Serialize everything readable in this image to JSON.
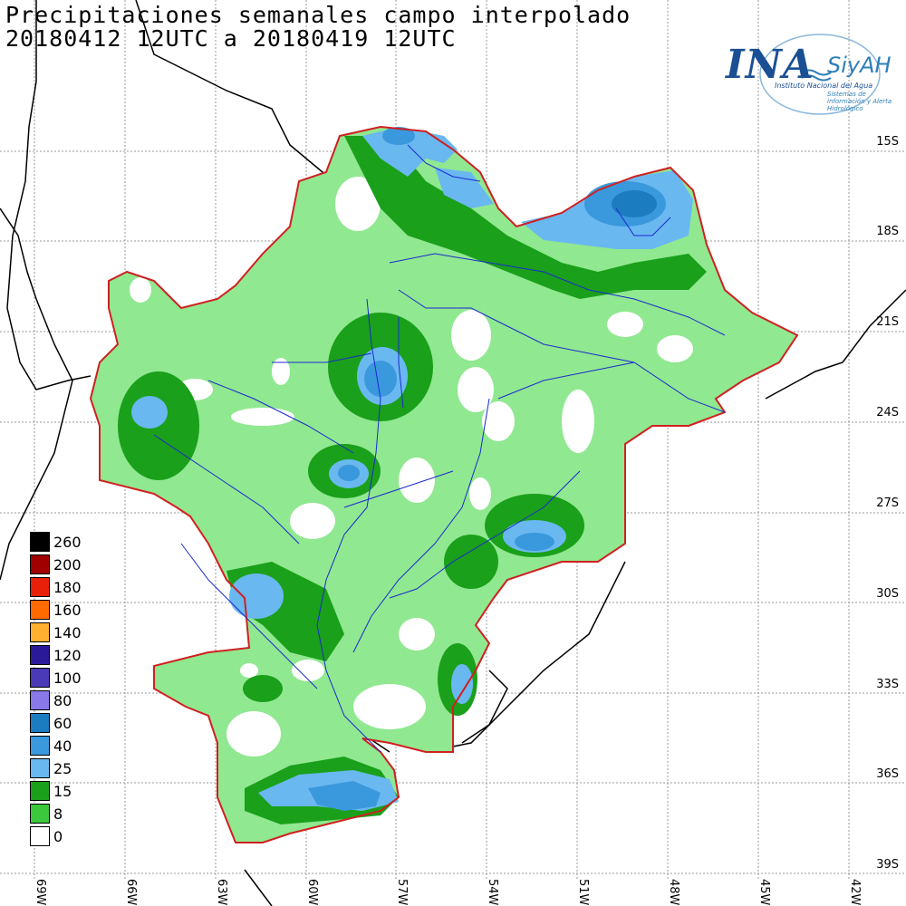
{
  "title": {
    "line1": "Precipitaciones semanales campo interpolado",
    "line2": "20180412 12UTC a 20180419 12UTC"
  },
  "logo": {
    "ina": "INA",
    "siyah": "SiyAH",
    "subtitle": "Instituto Nacional del Agua",
    "tagline": "Sistemas de información y Alerta Hidrológico"
  },
  "lat_labels": [
    "15S",
    "18S",
    "21S",
    "24S",
    "27S",
    "30S",
    "33S",
    "36S",
    "39S"
  ],
  "lon_labels": [
    "69W",
    "66W",
    "63W",
    "60W",
    "57W",
    "54W",
    "51W",
    "48W",
    "45W",
    "42W"
  ],
  "legend": [
    {
      "label": "260",
      "color": "#000000"
    },
    {
      "label": "200",
      "color": "#a00000"
    },
    {
      "label": "180",
      "color": "#e8200a"
    },
    {
      "label": "160",
      "color": "#ff6a00"
    },
    {
      "label": "140",
      "color": "#ffb030"
    },
    {
      "label": "120",
      "color": "#2a1a9a"
    },
    {
      "label": "100",
      "color": "#4a3ab8"
    },
    {
      "label": "80",
      "color": "#8878e8"
    },
    {
      "label": "60",
      "color": "#1c7cc0"
    },
    {
      "label": "40",
      "color": "#3a98dc"
    },
    {
      "label": "25",
      "color": "#6ab8f0"
    },
    {
      "label": "15",
      "color": "#1aa01a"
    },
    {
      "label": "8",
      "color": "#3cc83c"
    },
    {
      "label": "0",
      "color": "#ffffff"
    }
  ],
  "colors": {
    "background": "#ffffff",
    "basin_outline": "#d02020",
    "rivers": "#1a2ad0",
    "borders": "#000000",
    "grid": "#9a9a9a",
    "light_green": "#90e890"
  }
}
